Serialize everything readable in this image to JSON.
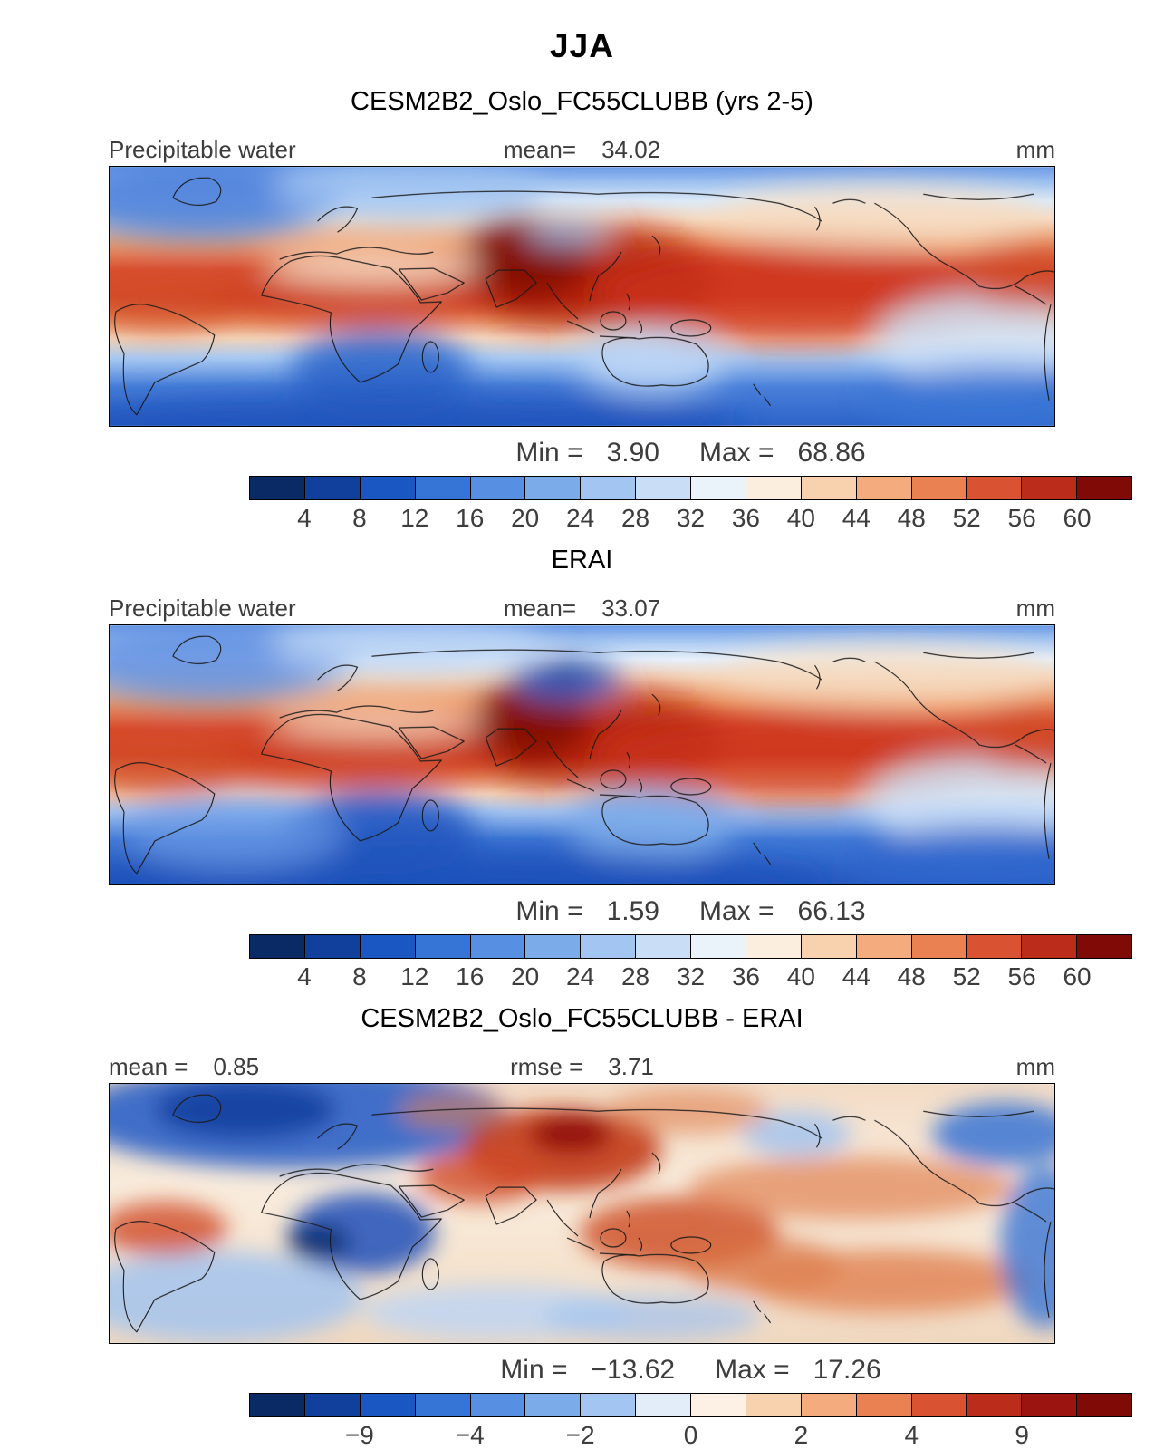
{
  "header": {
    "season_title": "JJA"
  },
  "panels": [
    {
      "title": "CESM2B2_Oslo_FC55CLUBB (yrs 2-5)",
      "left_label": "Precipitable water",
      "center_label": "mean=",
      "center_value": "34.02",
      "units": "mm",
      "min_label": "Min =",
      "min_value": "3.90",
      "max_label": "Max =",
      "max_value": "68.86"
    },
    {
      "title": "ERAI",
      "left_label": "Precipitable water",
      "center_label": "mean=",
      "center_value": "33.07",
      "units": "mm",
      "min_label": "Min =",
      "min_value": "1.59",
      "max_label": "Max =",
      "max_value": "66.13"
    },
    {
      "title": "CESM2B2_Oslo_FC55CLUBB - ERAI",
      "left_label": "mean =",
      "left_value": "0.85",
      "center_label": "rmse =",
      "center_value": "3.71",
      "units": "mm",
      "min_label": "Min =",
      "min_value": "−13.62",
      "max_label": "Max =",
      "max_value": "17.26"
    }
  ],
  "colorbars": [
    {
      "colors": [
        "#0a2a66",
        "#11409c",
        "#1b57c2",
        "#3674d6",
        "#578fe2",
        "#7cabe9",
        "#a3c5f1",
        "#c9ddf6",
        "#eaf2fa",
        "#fbeede",
        "#f8d1af",
        "#f4ab7e",
        "#ea8152",
        "#d95231",
        "#bb2c1a",
        "#7f0a06"
      ],
      "ticks": [
        {
          "t": "4",
          "p": 0.0625
        },
        {
          "t": "8",
          "p": 0.125
        },
        {
          "t": "12",
          "p": 0.1875
        },
        {
          "t": "16",
          "p": 0.25
        },
        {
          "t": "20",
          "p": 0.3125
        },
        {
          "t": "24",
          "p": 0.375
        },
        {
          "t": "28",
          "p": 0.4375
        },
        {
          "t": "32",
          "p": 0.5
        },
        {
          "t": "36",
          "p": 0.5625
        },
        {
          "t": "40",
          "p": 0.625
        },
        {
          "t": "44",
          "p": 0.6875
        },
        {
          "t": "48",
          "p": 0.75
        },
        {
          "t": "52",
          "p": 0.8125
        },
        {
          "t": "56",
          "p": 0.875
        },
        {
          "t": "60",
          "p": 0.9375
        }
      ]
    },
    {
      "colors": [
        "#0a2a66",
        "#11409c",
        "#1b57c2",
        "#3674d6",
        "#578fe2",
        "#7cabe9",
        "#a3c5f1",
        "#c9ddf6",
        "#eaf2fa",
        "#fbeede",
        "#f8d1af",
        "#f4ab7e",
        "#ea8152",
        "#d95231",
        "#bb2c1a",
        "#7f0a06"
      ],
      "ticks": [
        {
          "t": "4",
          "p": 0.0625
        },
        {
          "t": "8",
          "p": 0.125
        },
        {
          "t": "12",
          "p": 0.1875
        },
        {
          "t": "16",
          "p": 0.25
        },
        {
          "t": "20",
          "p": 0.3125
        },
        {
          "t": "24",
          "p": 0.375
        },
        {
          "t": "28",
          "p": 0.4375
        },
        {
          "t": "32",
          "p": 0.5
        },
        {
          "t": "36",
          "p": 0.5625
        },
        {
          "t": "40",
          "p": 0.625
        },
        {
          "t": "44",
          "p": 0.6875
        },
        {
          "t": "48",
          "p": 0.75
        },
        {
          "t": "52",
          "p": 0.8125
        },
        {
          "t": "56",
          "p": 0.875
        },
        {
          "t": "60",
          "p": 0.9375
        }
      ]
    },
    {
      "colors": [
        "#0a2a66",
        "#11409c",
        "#1b57c2",
        "#3674d6",
        "#578fe2",
        "#7cabe9",
        "#a3c5f1",
        "#e2edf9",
        "#fdf1e6",
        "#f8d1af",
        "#f4ab7e",
        "#ea8152",
        "#d95231",
        "#bb2c1a",
        "#9c1410",
        "#7f0a06"
      ],
      "ticks": [
        {
          "t": "−9",
          "p": 0.125
        },
        {
          "t": "−4",
          "p": 0.25
        },
        {
          "t": "−2",
          "p": 0.375
        },
        {
          "t": "0",
          "p": 0.5
        },
        {
          "t": "2",
          "p": 0.625
        },
        {
          "t": "4",
          "p": 0.75
        },
        {
          "t": "9",
          "p": 0.875
        }
      ]
    }
  ],
  "chart_data": [
    {
      "type": "heatmap",
      "subtype": "global filled-contour map",
      "season": "JJA",
      "title": "CESM2B2_Oslo_FC55CLUBB (yrs 2-5)",
      "variable": "Precipitable water",
      "units": "mm",
      "mean": 34.02,
      "min": 3.9,
      "max": 68.86,
      "contour_levels": [
        4,
        8,
        12,
        16,
        20,
        24,
        28,
        32,
        36,
        40,
        44,
        48,
        52,
        56,
        60
      ],
      "palette": "blue-white-red diverging, 16 classes",
      "pattern_notes": "High values (>48 mm, dark red) over India, Bay of Bengal and the tropical west Pacific; broad red band along the tropics; low values (<16 mm, blue) over subtropical south Atlantic/Indian oceans, southern Africa, Australia interior and high latitudes."
    },
    {
      "type": "heatmap",
      "subtype": "global filled-contour map",
      "season": "JJA",
      "title": "ERAI",
      "variable": "Precipitable water",
      "units": "mm",
      "mean": 33.07,
      "min": 1.59,
      "max": 66.13,
      "contour_levels": [
        4,
        8,
        12,
        16,
        20,
        24,
        28,
        32,
        36,
        40,
        44,
        48,
        52,
        56,
        60
      ],
      "palette": "blue-white-red diverging, 16 classes",
      "pattern_notes": "Similar tropical maximum over South Asia and west Pacific; distinct dry (blue) region over the Tibetan Plateau; extensive southern-hemisphere blue band."
    },
    {
      "type": "heatmap",
      "subtype": "global filled-contour difference map",
      "season": "JJA",
      "title": "CESM2B2_Oslo_FC55CLUBB - ERAI",
      "variable": "Precipitable water difference",
      "units": "mm",
      "mean": 0.85,
      "rmse": 3.71,
      "min": -13.62,
      "max": 17.26,
      "labeled_levels": [
        -9,
        -4,
        -2,
        0,
        2,
        4,
        9
      ],
      "palette": "blue-white-red diverging, 16 classes",
      "pattern_notes": "Wet bias (red) over Himalaya/North India, Arabia, maritime continent and subtropical Pacific; dry bias (blue) over North Atlantic/Europe, equatorial Africa and eastern Pacific coast of South America."
    }
  ]
}
